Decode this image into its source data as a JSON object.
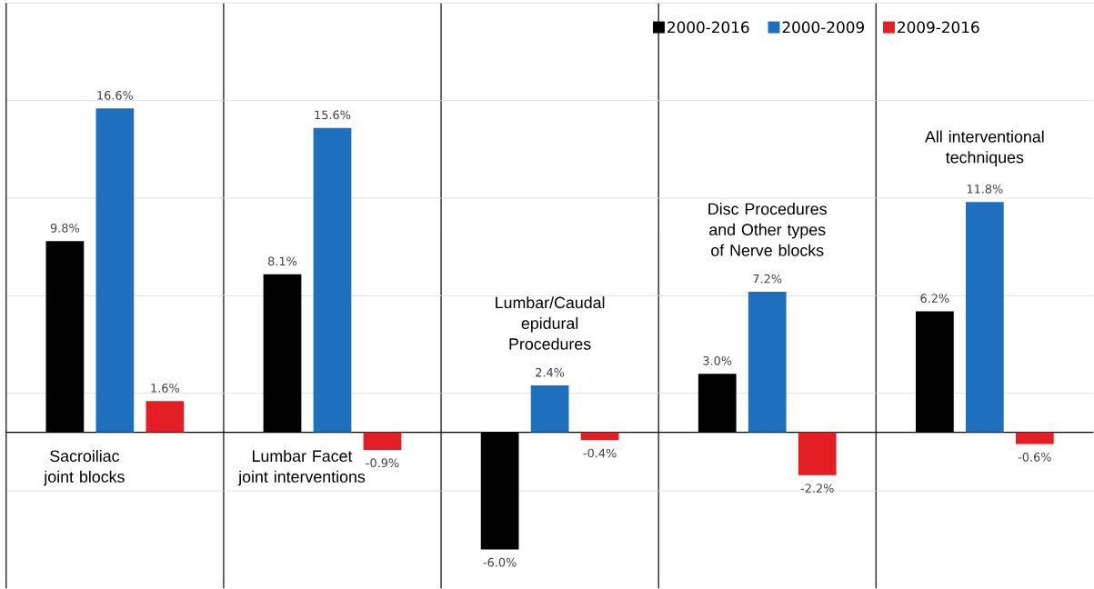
{
  "chart_data": {
    "type": "bar",
    "categories": [
      "Sacroiliac joint blocks",
      "Lumbar Facet joint interventions",
      "Lumbar/Caudal epidural Procedures",
      "Disc Procedures and Other types of Nerve blocks",
      "All interventional techniques"
    ],
    "series": [
      {
        "name": "2000-2016",
        "color": "#000000",
        "values": [
          9.8,
          8.1,
          -6.0,
          3.0,
          6.2
        ],
        "value_labels": [
          "9.8%",
          "8.1%",
          "-6.0%",
          "3.0%",
          "6.2%"
        ]
      },
      {
        "name": "2000-2009",
        "color": "#1f6fbf",
        "values": [
          16.6,
          15.6,
          2.4,
          7.2,
          11.8
        ],
        "value_labels": [
          "16.6%",
          "15.6%",
          "2.4%",
          "7.2%",
          "11.8%"
        ]
      },
      {
        "name": "2009-2016",
        "color": "#e31e24",
        "values": [
          1.6,
          -0.9,
          -0.4,
          -2.2,
          -0.6
        ],
        "value_labels": [
          "1.6%",
          "-0.9%",
          "-0.4%",
          "-2.2%",
          "-0.6%"
        ]
      }
    ],
    "ylim": [
      -8,
      22
    ],
    "yticks": [
      {
        "value": -3,
        "label": null
      },
      {
        "value": 2,
        "label": null
      },
      {
        "value": 7,
        "label": null
      },
      {
        "value": 12,
        "label": null
      },
      {
        "value": 17,
        "label": null
      },
      {
        "value": 22,
        "label": null
      }
    ],
    "grid": "y",
    "legend": "top right"
  }
}
